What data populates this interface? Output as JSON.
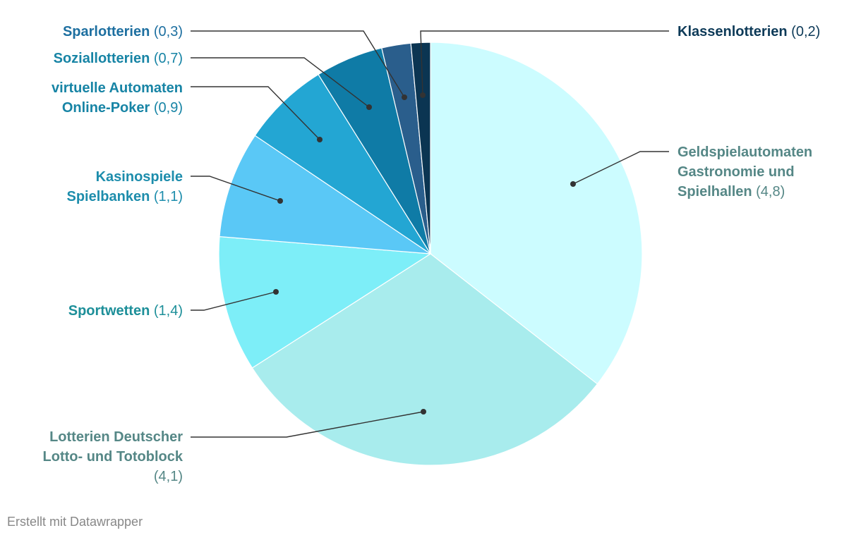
{
  "chart_data": {
    "type": "pie",
    "title": "",
    "categories": [
      "Geldspielautomaten Gastronomie und Spielhallen",
      "Lotterien Deutscher Lotto- und Totoblock",
      "Sportwetten",
      "Kasinospiele Spielbanken",
      "virtuelle Automaten Online-Poker",
      "Soziallotterien",
      "Sparlotterien",
      "Klassenlotterien"
    ],
    "values": [
      4.8,
      4.1,
      1.4,
      1.1,
      0.9,
      0.7,
      0.3,
      0.2
    ],
    "value_labels": [
      "(4,8)",
      "(4,1)",
      "(1,4)",
      "(1,1)",
      "(0,9)",
      "(0,7)",
      "(0,3)",
      "(0,2)"
    ],
    "label_lines": [
      [
        "Geldspielautomaten",
        "Gastronomie und",
        "Spielhallen"
      ],
      [
        "Lotterien Deutscher",
        "Lotto- und Totoblock",
        ""
      ],
      [
        "Sportwetten"
      ],
      [
        "Kasinospiele",
        "Spielbanken"
      ],
      [
        "virtuelle Automaten",
        "Online-Poker"
      ],
      [
        "Soziallotterien"
      ],
      [
        "Sparlotterien"
      ],
      [
        "Klassenlotterien"
      ]
    ],
    "slice_colors": [
      "#ccfcff",
      "#a8eced",
      "#7deef8",
      "#5ac8f6",
      "#23a6d3",
      "#0f7ba6",
      "#2a5e8c",
      "#0b3552"
    ],
    "label_colors": [
      "#558786",
      "#558786",
      "#1d8f99",
      "#1d8dac",
      "#1784a5",
      "#1784a5",
      "#1d6fa0",
      "#0d3a58"
    ]
  },
  "footer": "Erstellt mit Datawrapper"
}
